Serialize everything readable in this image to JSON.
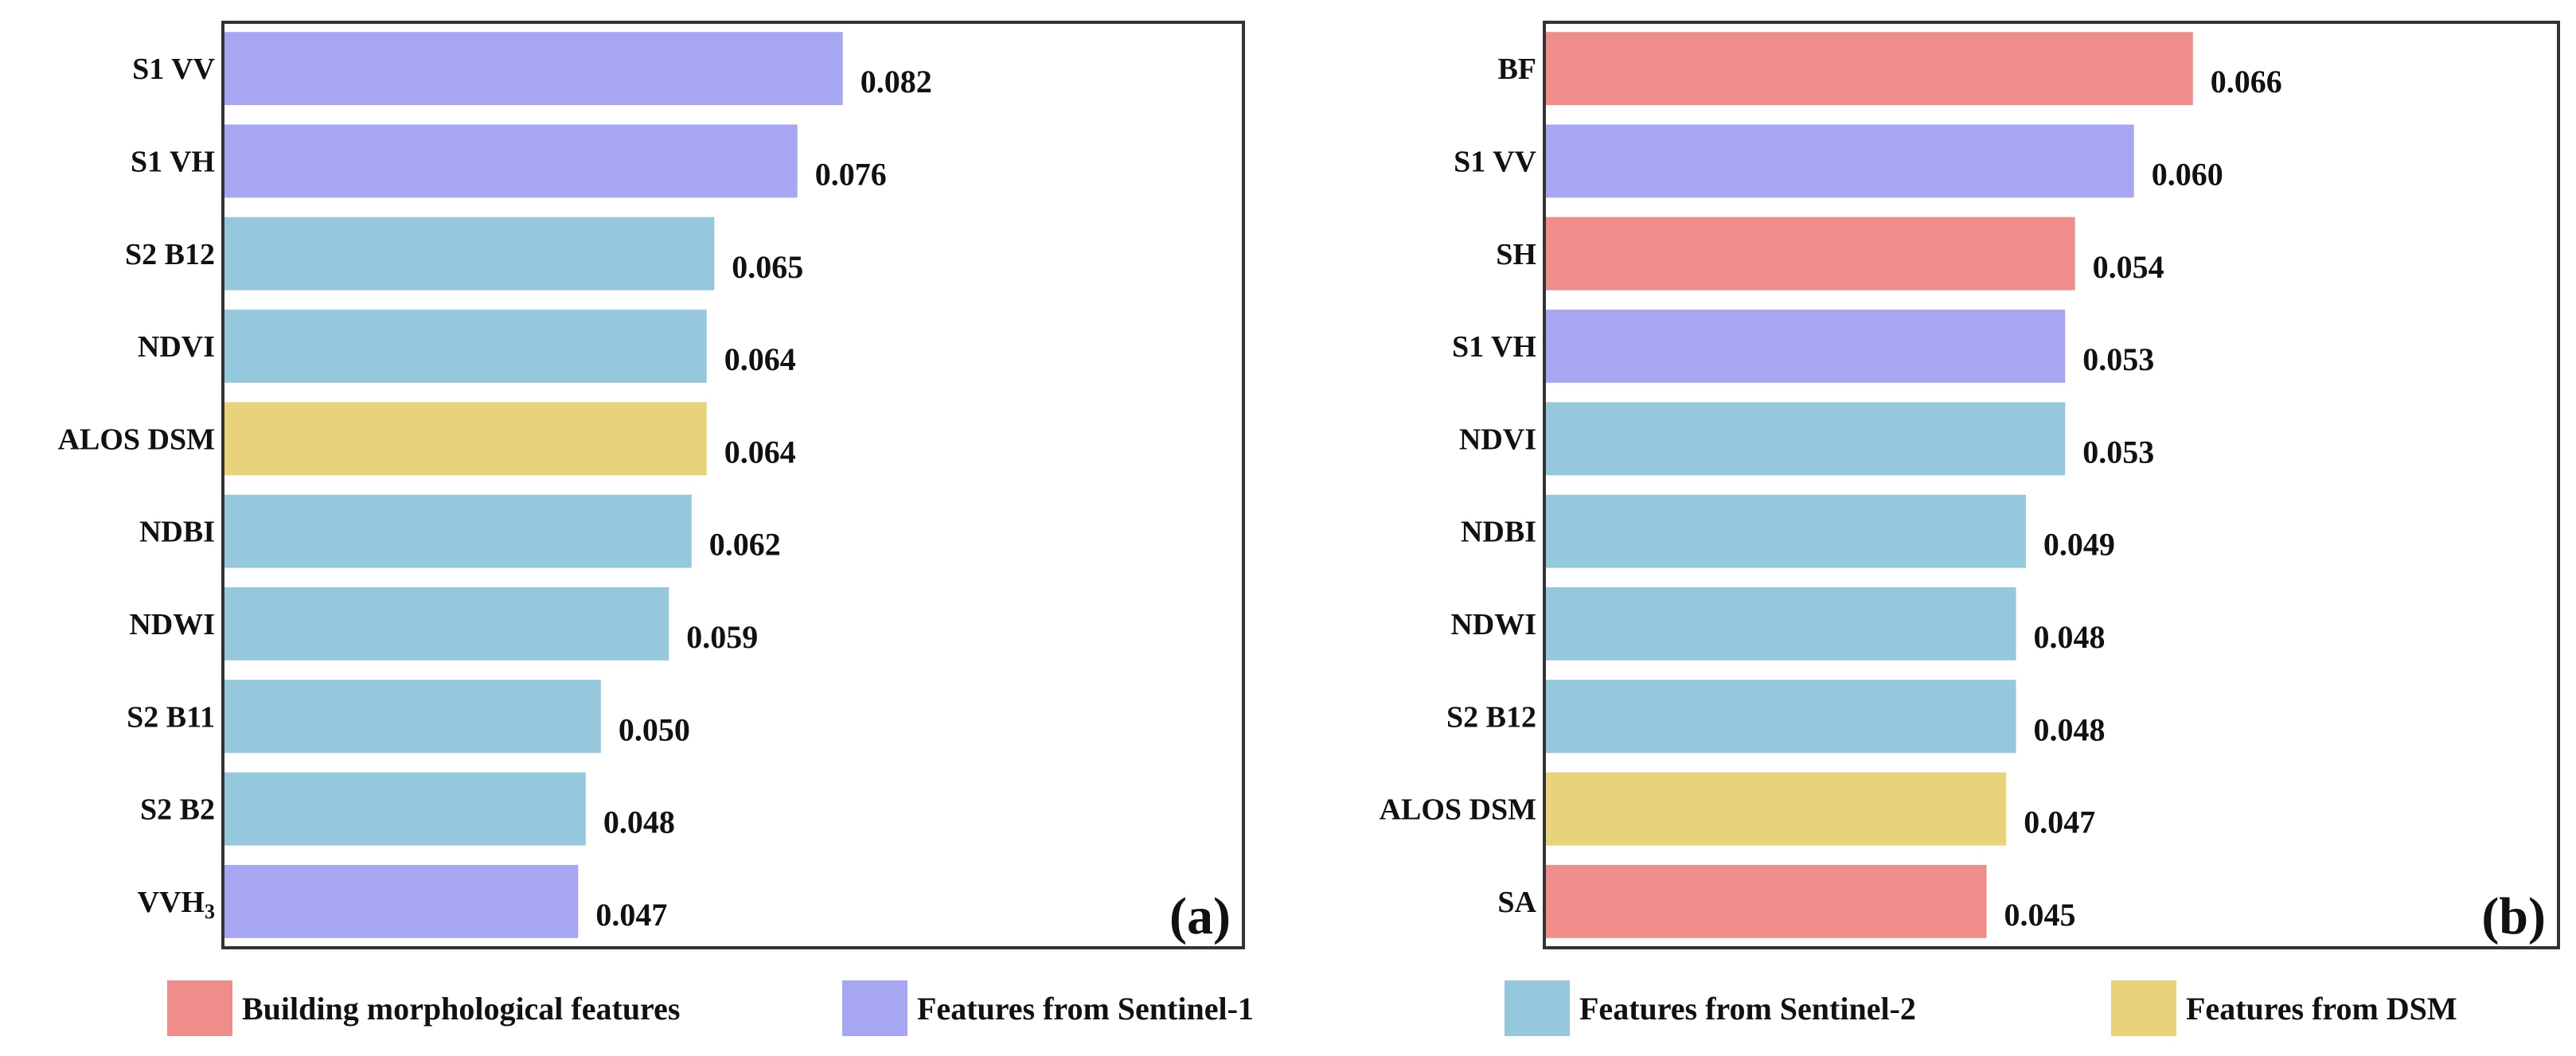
{
  "colors": {
    "building": "#ef8d8a",
    "sentinel1": "#a6a6f2",
    "sentinel2": "#95c8dc",
    "dsm": "#e8d27a"
  },
  "chart_data": [
    {
      "type": "bar",
      "orientation": "horizontal",
      "panel_label": "(a)",
      "xlim": [
        0,
        0.135
      ],
      "categories": [
        "S1 VV",
        "S1 VH",
        "S2 B12",
        "NDVI",
        "ALOS DSM",
        "NDBI",
        "NDWI",
        "S2 B11",
        "S2 B2",
        "VVH"
      ],
      "category_subscripts": [
        "",
        "",
        "",
        "",
        "",
        "",
        "",
        "",
        "",
        "3"
      ],
      "values": [
        0.082,
        0.076,
        0.065,
        0.064,
        0.064,
        0.062,
        0.059,
        0.05,
        0.048,
        0.047
      ],
      "value_labels": [
        "0.082",
        "0.076",
        "0.065",
        "0.064",
        "0.064",
        "0.062",
        "0.059",
        "0.050",
        "0.048",
        "0.047"
      ],
      "groups": [
        "sentinel1",
        "sentinel1",
        "sentinel2",
        "sentinel2",
        "dsm",
        "sentinel2",
        "sentinel2",
        "sentinel2",
        "sentinel2",
        "sentinel1"
      ]
    },
    {
      "type": "bar",
      "orientation": "horizontal",
      "panel_label": "(b)",
      "xlim": [
        0,
        0.1032
      ],
      "categories": [
        "BF",
        "S1 VV",
        "SH",
        "S1 VH",
        "NDVI",
        "NDBI",
        "NDWI",
        "S2 B12",
        "ALOS DSM",
        "SA"
      ],
      "category_subscripts": [
        "",
        "",
        "",
        "",
        "",
        "",
        "",
        "",
        "",
        ""
      ],
      "values": [
        0.066,
        0.06,
        0.054,
        0.053,
        0.053,
        0.049,
        0.048,
        0.048,
        0.047,
        0.045
      ],
      "value_labels": [
        "0.066",
        "0.060",
        "0.054",
        "0.053",
        "0.053",
        "0.049",
        "0.048",
        "0.048",
        "0.047",
        "0.045"
      ],
      "groups": [
        "building",
        "sentinel1",
        "building",
        "sentinel1",
        "sentinel2",
        "sentinel2",
        "sentinel2",
        "sentinel2",
        "dsm",
        "building"
      ]
    }
  ],
  "legend": [
    {
      "key": "building",
      "label": "Building morphological features"
    },
    {
      "key": "sentinel1",
      "label": "Features from Sentinel-1"
    },
    {
      "key": "sentinel2",
      "label": "Features from Sentinel-2"
    },
    {
      "key": "dsm",
      "label": "Features from DSM"
    }
  ]
}
